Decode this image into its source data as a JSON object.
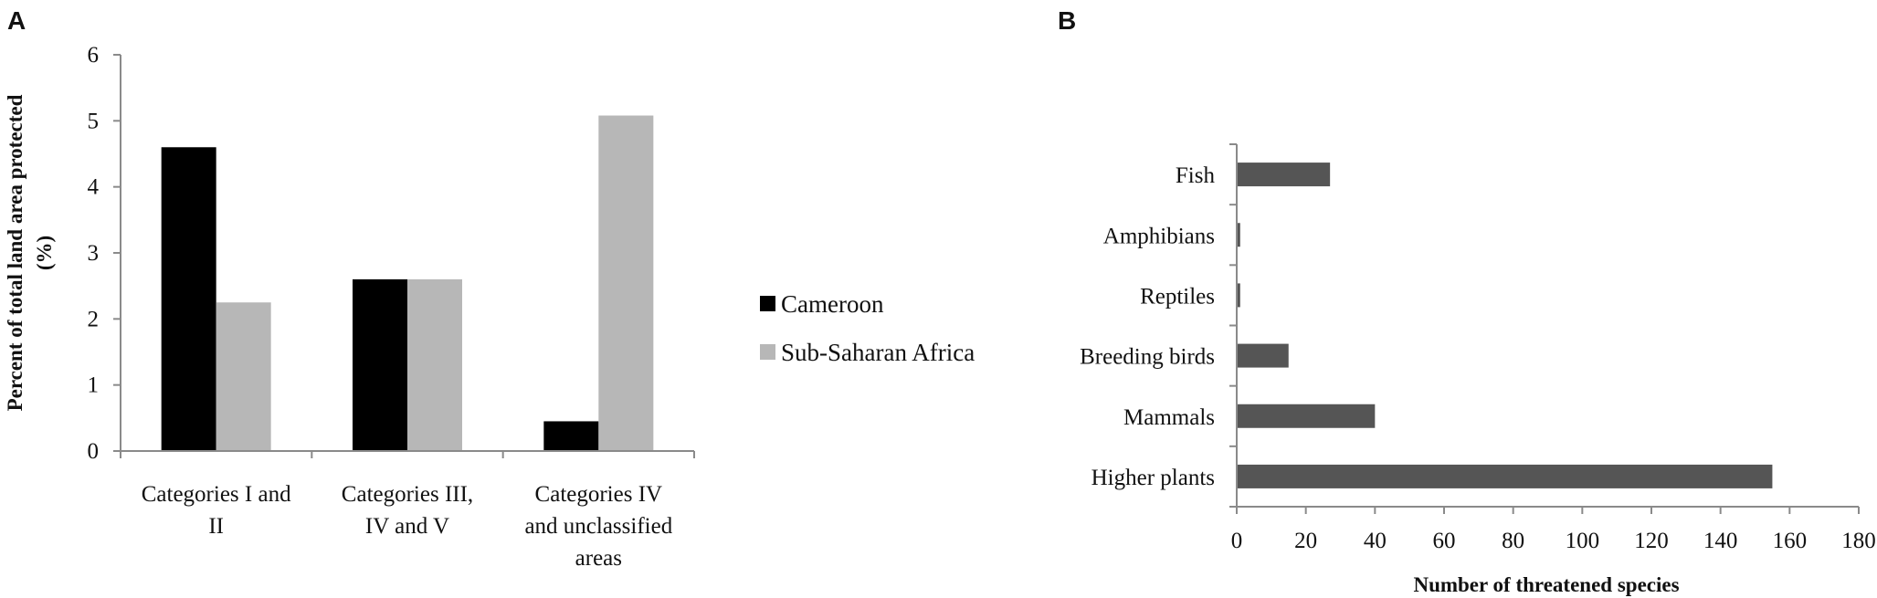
{
  "panels": {
    "a": {
      "label": "A"
    },
    "b": {
      "label": "B"
    }
  },
  "chart_data": [
    {
      "type": "bar",
      "panel": "A",
      "categories": [
        "Categories I and II",
        "Categories III, IV and V",
        "Categories IV and unclassified areas"
      ],
      "category_lines": [
        [
          "Categories I and",
          "II"
        ],
        [
          "Categories III,",
          "IV and V"
        ],
        [
          "Categories IV",
          "and unclassified",
          "areas"
        ]
      ],
      "series": [
        {
          "name": "Cameroon",
          "color": "#000000",
          "values": [
            4.6,
            2.6,
            0.45
          ]
        },
        {
          "name": "Sub-Saharan Africa",
          "color": "#b7b7b7",
          "values": [
            2.25,
            2.6,
            5.08
          ]
        }
      ],
      "title": "",
      "xlabel": "",
      "ylabel_lines": [
        "Percent of total land area protected",
        "(%)"
      ],
      "ylim": [
        0,
        6
      ],
      "yticks": [
        "0",
        "1",
        "2",
        "3",
        "4",
        "5",
        "6"
      ],
      "grid": false,
      "legend_position": "right"
    },
    {
      "type": "bar",
      "orientation": "horizontal",
      "panel": "B",
      "categories": [
        "Higher plants",
        "Mammals",
        "Breeding birds",
        "Reptiles",
        "Amphibians",
        "Fish"
      ],
      "values": [
        155,
        40,
        15,
        1,
        1,
        27
      ],
      "color": "#555555",
      "title": "",
      "xlabel": "Number of threatened species",
      "ylabel": "",
      "xlim": [
        0,
        180
      ],
      "xticks": [
        "0",
        "20",
        "40",
        "60",
        "80",
        "100",
        "120",
        "140",
        "160",
        "180"
      ],
      "grid": false
    }
  ]
}
